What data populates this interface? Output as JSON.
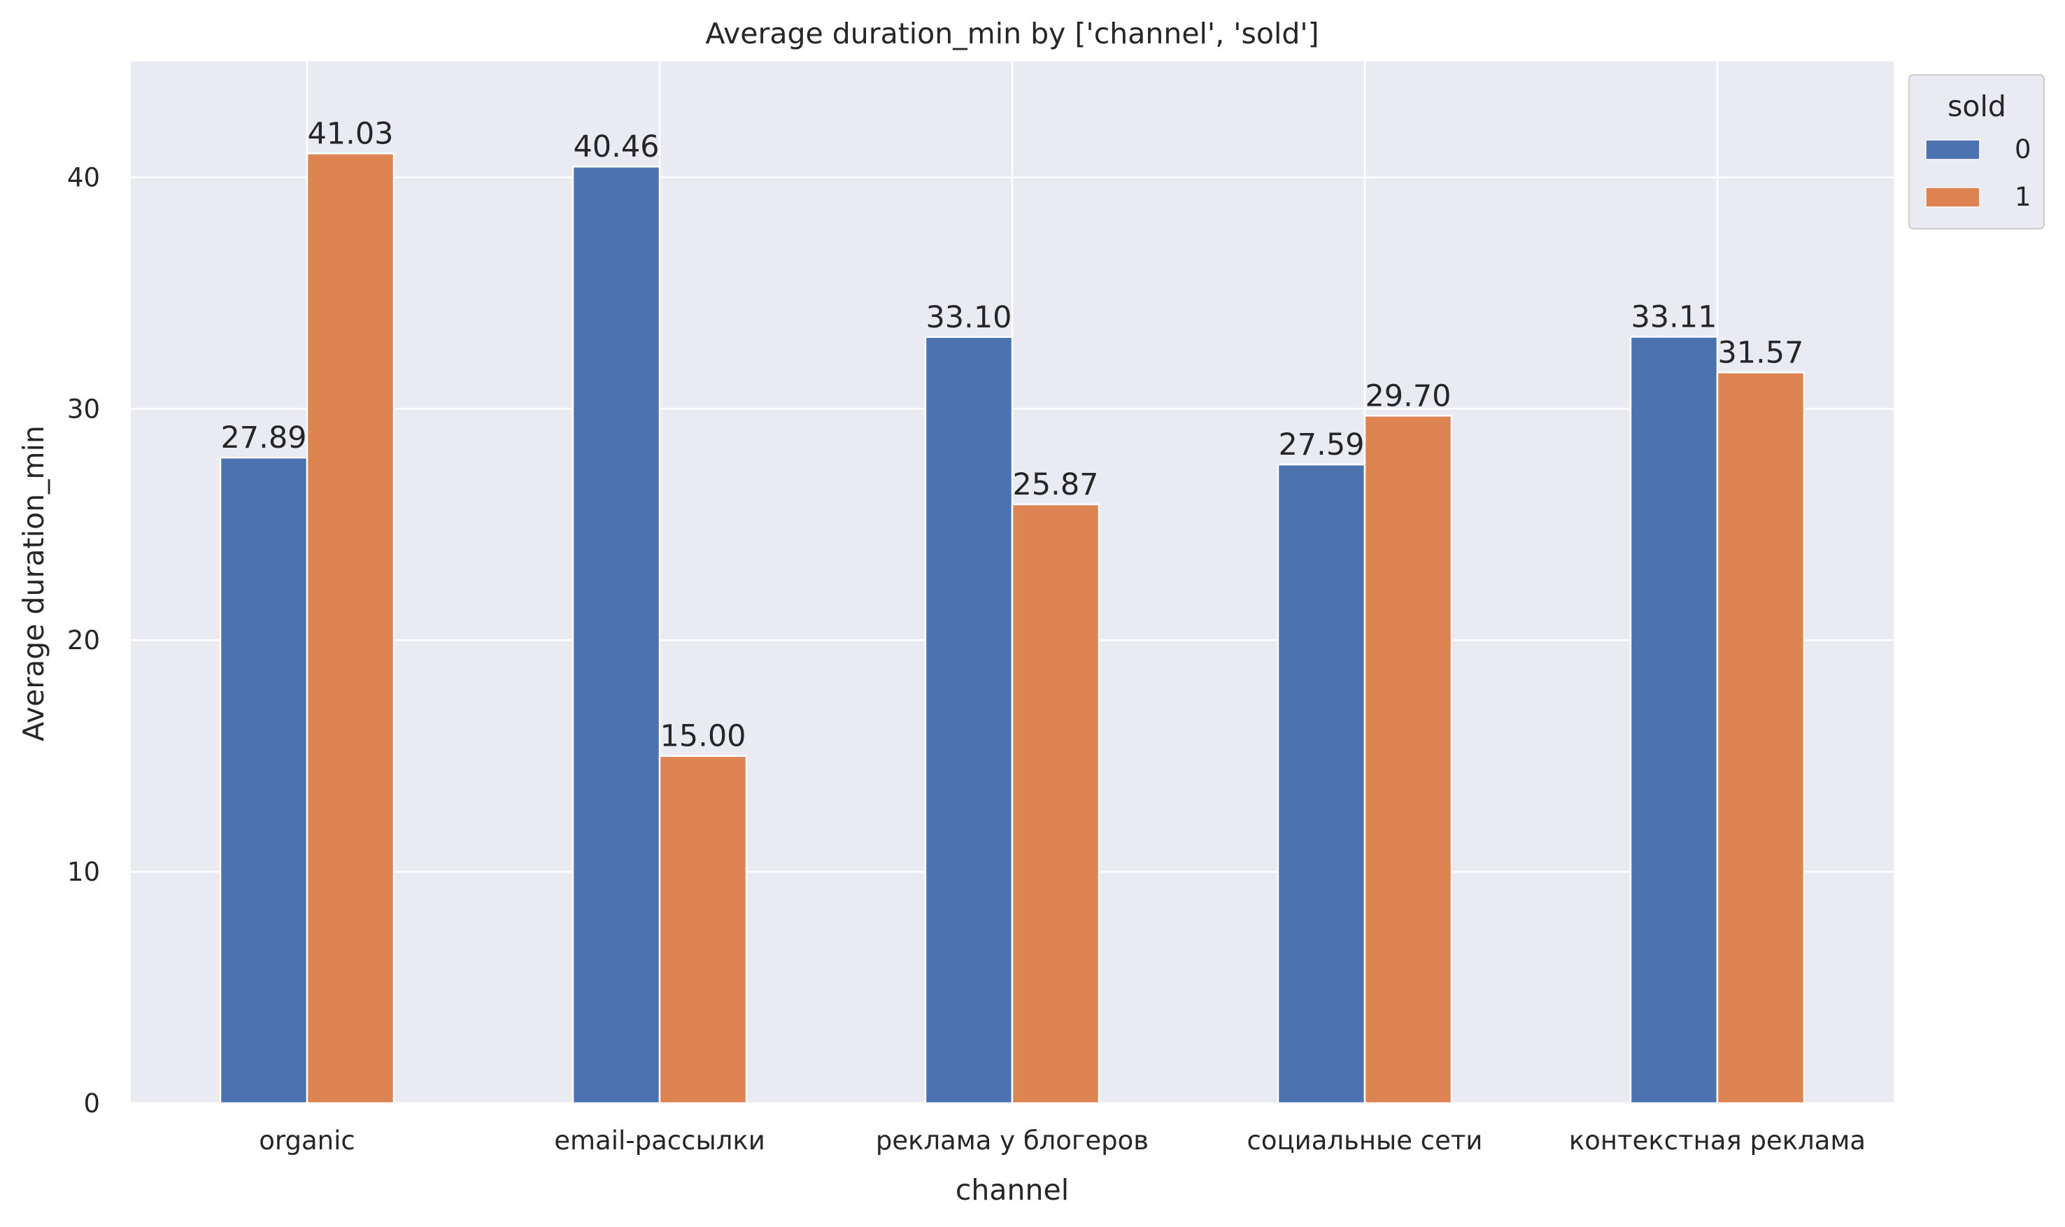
{
  "chart_data": {
    "type": "bar",
    "title": "Average duration_min by ['channel', 'sold']",
    "xlabel": "channel",
    "ylabel": "Average duration_min",
    "categories": [
      "organic",
      "email-рассылки",
      "реклама у блогеров",
      "социальные сети",
      "контекстная реклама"
    ],
    "series": [
      {
        "name": "0",
        "values": [
          27.89,
          40.46,
          33.1,
          27.59,
          33.11
        ],
        "labels": [
          "27.89",
          "40.46",
          "33.10",
          "27.59",
          "33.11"
        ],
        "color": "#4c72b0"
      },
      {
        "name": "1",
        "values": [
          41.03,
          15.0,
          25.87,
          29.7,
          31.57
        ],
        "labels": [
          "41.03",
          "15.00",
          "25.87",
          "29.70",
          "31.57"
        ],
        "color": "#dd8452"
      }
    ],
    "ylim": [
      0,
      45
    ],
    "yticks": [
      0,
      10,
      20,
      30,
      40
    ],
    "grid": true,
    "legend": {
      "title": "sold",
      "placement": "top-right, outside plot"
    },
    "background": "#eaeaf2"
  }
}
